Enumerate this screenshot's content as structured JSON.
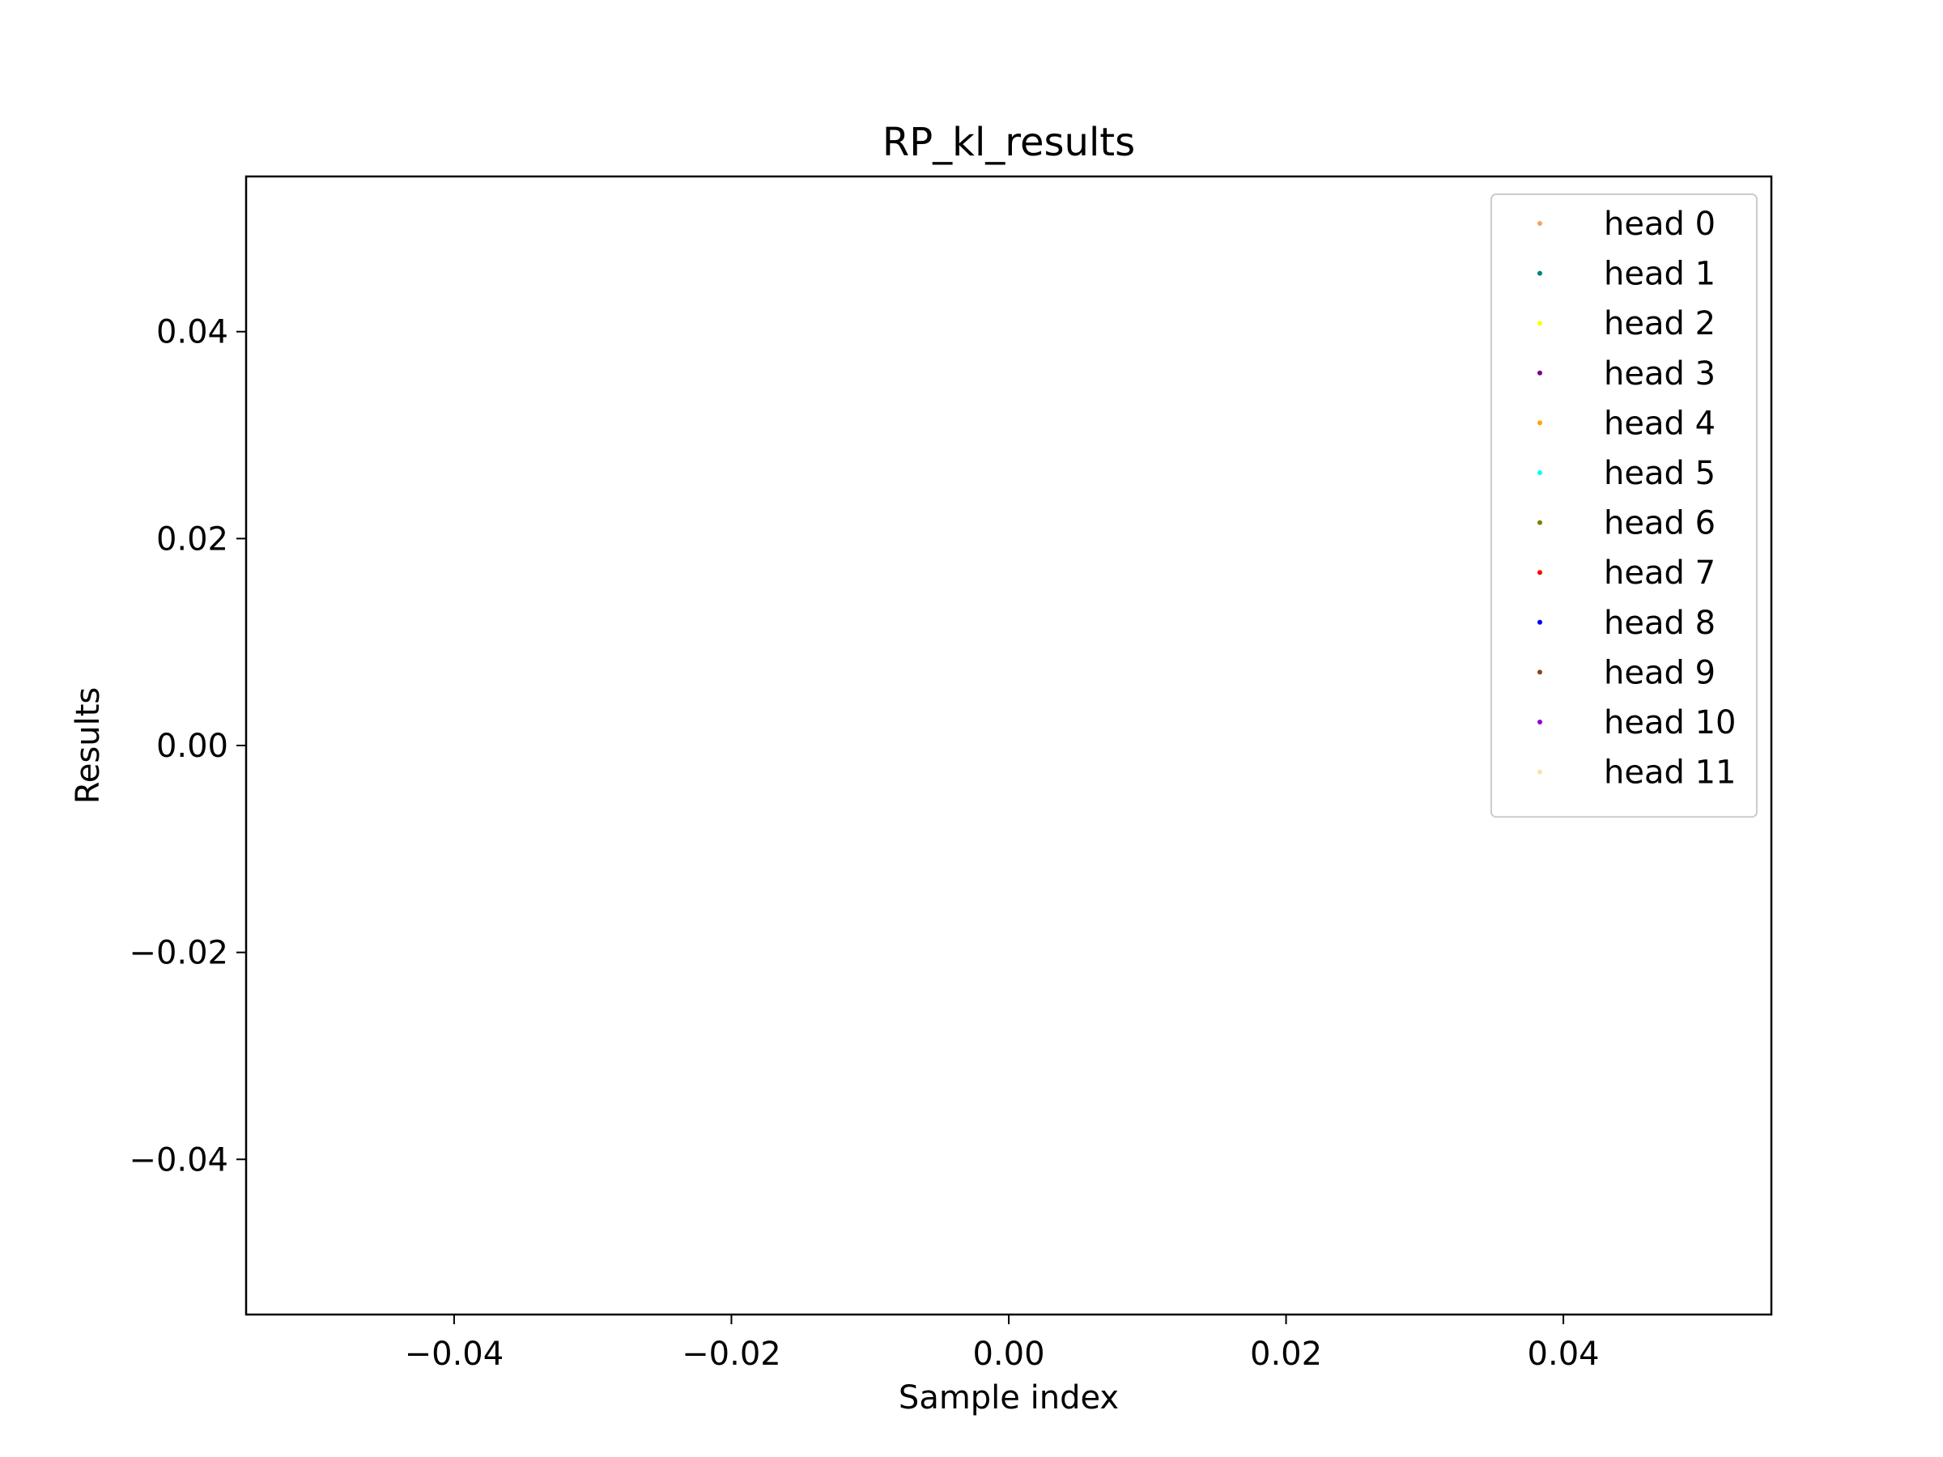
{
  "chart_data": {
    "type": "scatter",
    "title": "RP_kl_results",
    "xlabel": "Sample index",
    "ylabel": "Results",
    "xlim": [
      -0.055,
      0.055
    ],
    "ylim": [
      -0.055,
      0.055
    ],
    "x_ticks": [
      -0.04,
      -0.02,
      0.0,
      0.02,
      0.04
    ],
    "x_tick_labels": [
      "−0.04",
      "−0.02",
      "0.00",
      "0.02",
      "0.04"
    ],
    "y_ticks": [
      -0.04,
      -0.02,
      0.0,
      0.02,
      0.04
    ],
    "y_tick_labels": [
      "−0.04",
      "−0.02",
      "0.00",
      "0.02",
      "0.04"
    ],
    "grid": false,
    "legend_position": "top-right",
    "series": [
      {
        "name": "head 0",
        "color": "#f4a460",
        "x": [],
        "y": []
      },
      {
        "name": "head 1",
        "color": "#008080",
        "x": [],
        "y": []
      },
      {
        "name": "head 2",
        "color": "#ffff00",
        "x": [],
        "y": []
      },
      {
        "name": "head 3",
        "color": "#800080",
        "x": [],
        "y": []
      },
      {
        "name": "head 4",
        "color": "#ffa500",
        "x": [],
        "y": []
      },
      {
        "name": "head 5",
        "color": "#00ffff",
        "x": [],
        "y": []
      },
      {
        "name": "head 6",
        "color": "#808000",
        "x": [],
        "y": []
      },
      {
        "name": "head 7",
        "color": "#ff0000",
        "x": [],
        "y": []
      },
      {
        "name": "head 8",
        "color": "#0000ff",
        "x": [],
        "y": []
      },
      {
        "name": "head 9",
        "color": "#8b4513",
        "x": [],
        "y": []
      },
      {
        "name": "head 10",
        "color": "#9400d3",
        "x": [],
        "y": []
      },
      {
        "name": "head 11",
        "color": "#ffdead",
        "x": [],
        "y": []
      }
    ]
  }
}
